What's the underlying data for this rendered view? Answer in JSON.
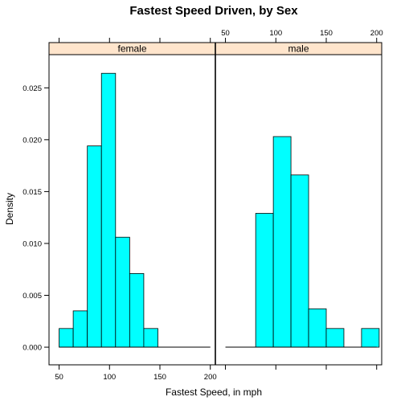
{
  "chart_data": {
    "type": "bar",
    "title": "Fastest Speed Driven, by Sex",
    "xlabel": "Fastest Speed, in mph",
    "ylabel": "Density",
    "xlim": [
      40,
      205
    ],
    "ylim": [
      -0.0017,
      0.0282
    ],
    "x_ticks": [
      50,
      100,
      150,
      200
    ],
    "y_ticks": [
      0.0,
      0.005,
      0.01,
      0.015,
      0.02,
      0.025
    ],
    "y_tick_labels": [
      "0.000",
      "0.005",
      "0.010",
      "0.015",
      "0.020",
      "0.025"
    ],
    "bar_color": "#00FFFF",
    "strip_color": "#FFE5CC",
    "panels": [
      {
        "name": "female",
        "data_range": [
          50,
          200
        ],
        "bins": [
          {
            "x0": 50,
            "x1": 64,
            "density": 0.0018
          },
          {
            "x0": 64,
            "x1": 78,
            "density": 0.0035
          },
          {
            "x0": 78,
            "x1": 92,
            "density": 0.0194
          },
          {
            "x0": 92,
            "x1": 106,
            "density": 0.0264
          },
          {
            "x0": 106,
            "x1": 120,
            "density": 0.0106
          },
          {
            "x0": 120,
            "x1": 134,
            "density": 0.0071
          },
          {
            "x0": 134,
            "x1": 148,
            "density": 0.0018
          }
        ]
      },
      {
        "name": "male",
        "data_range": [
          50,
          200
        ],
        "bins": [
          {
            "x0": 80,
            "x1": 97.5,
            "density": 0.0129
          },
          {
            "x0": 97.5,
            "x1": 115,
            "density": 0.0203
          },
          {
            "x0": 115,
            "x1": 132.5,
            "density": 0.0166
          },
          {
            "x0": 132.5,
            "x1": 150,
            "density": 0.0037
          },
          {
            "x0": 150,
            "x1": 167.5,
            "density": 0.0018
          },
          {
            "x0": 167.5,
            "x1": 185,
            "density": 0.0
          },
          {
            "x0": 185,
            "x1": 202.5,
            "density": 0.0018
          }
        ]
      }
    ]
  }
}
